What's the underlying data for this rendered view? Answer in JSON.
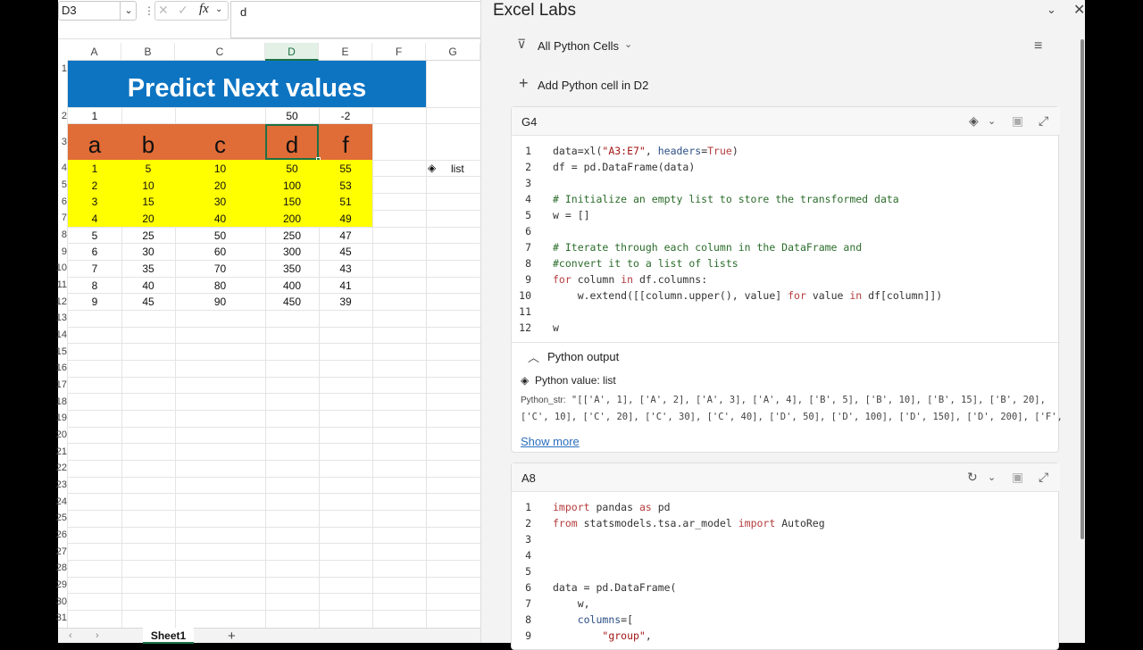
{
  "formula_bar": {
    "name_box": "D3",
    "formula": "d"
  },
  "columns": [
    "A",
    "B",
    "C",
    "D",
    "E",
    "F",
    "G"
  ],
  "rows": [
    "1",
    "2",
    "3",
    "4",
    "5",
    "6",
    "7",
    "8",
    "9",
    "10",
    "11",
    "12",
    "13",
    "14",
    "15",
    "16",
    "17",
    "18",
    "19",
    "20",
    "21",
    "22",
    "23",
    "24",
    "25",
    "26",
    "27",
    "28",
    "29",
    "30",
    "31"
  ],
  "sheet": {
    "title": "Predict Next  values",
    "row2": [
      "1",
      "",
      "",
      "50",
      "-2"
    ],
    "headers": [
      "a",
      "b",
      "c",
      "d",
      "f"
    ],
    "data_rows": [
      [
        "1",
        "5",
        "10",
        "50",
        "55"
      ],
      [
        "2",
        "10",
        "20",
        "100",
        "53"
      ],
      [
        "3",
        "15",
        "30",
        "150",
        "51"
      ],
      [
        "4",
        "20",
        "40",
        "200",
        "49"
      ],
      [
        "5",
        "25",
        "50",
        "250",
        "47"
      ],
      [
        "6",
        "30",
        "60",
        "300",
        "45"
      ],
      [
        "7",
        "35",
        "70",
        "350",
        "43"
      ],
      [
        "8",
        "40",
        "80",
        "400",
        "41"
      ],
      [
        "9",
        "45",
        "90",
        "450",
        "39"
      ]
    ],
    "list_cell": "list"
  },
  "tabs": {
    "sheet1": "Sheet1",
    "add": "+"
  },
  "pane": {
    "title": "Excel Labs",
    "filter": "All Python Cells",
    "add_cell": "Add Python cell in D2",
    "card1": {
      "ref": "G4",
      "line_numbers": [
        "1",
        "2",
        "3",
        "4",
        "5",
        "6",
        "7",
        "8",
        "9",
        "10",
        "11",
        "12"
      ],
      "output_label": "Python output",
      "python_value": "Python value: list",
      "python_str_label": "Python_str:",
      "python_str_line1": "\"[['A', 1], ['A', 2], ['A', 3], ['A', 4], ['B', 5], ['B', 10], ['B', 15], ['B', 20],",
      "python_str_line2": "['C', 10], ['C', 20], ['C', 30], ['C', 40], ['D', 50], ['D', 100], ['D', 150], ['D', 200], ['F',",
      "show_more": "Show more"
    },
    "card2": {
      "ref": "A8",
      "line_numbers": [
        "1",
        "2",
        "3",
        "4",
        "5",
        "6",
        "7",
        "8",
        "9"
      ]
    }
  }
}
